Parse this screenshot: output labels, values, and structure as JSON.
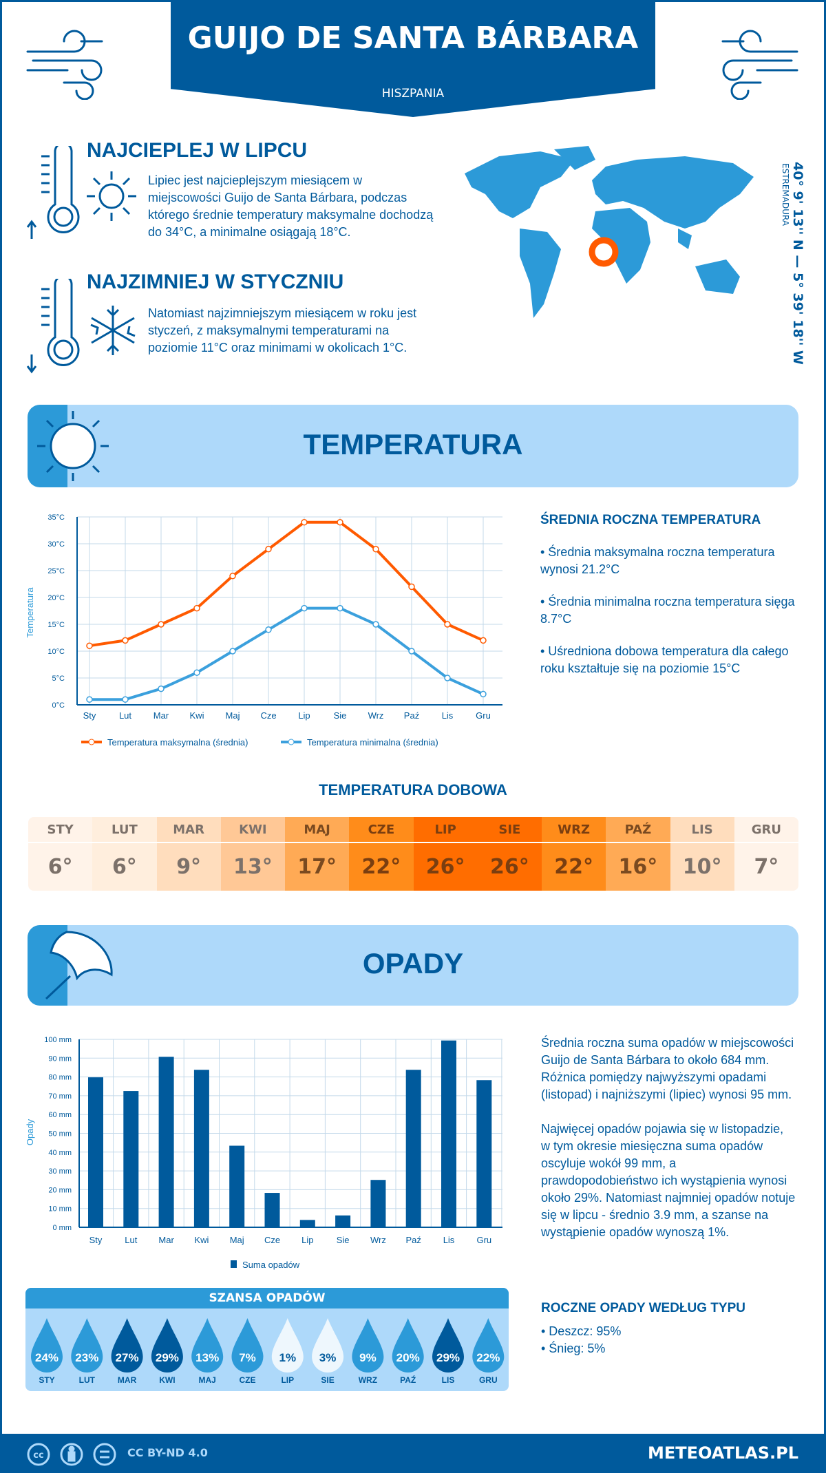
{
  "header": {
    "title": "GUIJO DE SANTA BÁRBARA",
    "country": "HISZPANIA"
  },
  "hottest": {
    "title": "NAJCIEPLEJ W LIPCU",
    "text": "Lipiec jest najcieplejszym miesiącem w miejscowości Guijo de Santa Bárbara, podczas którego średnie temperatury maksymalne dochodzą do 34°C, a minimalne osiągają 18°C."
  },
  "coldest": {
    "title": "NAJZIMNIEJ W STYCZNIU",
    "text": "Natomiast najzimniejszym miesiącem w roku jest styczeń, z maksymalnymi temperaturami na poziomie 11°C oraz minimami w okolicach 1°C."
  },
  "map": {
    "coordinates": "40° 9' 13'' N — 5° 39' 18'' W",
    "region": "ESTREMADURA",
    "marker_color": "#ff5a00"
  },
  "temp_section": {
    "title": "TEMPERATURA"
  },
  "temp_stats": {
    "title": "ŚREDNIA ROCZNA TEMPERATURA",
    "items": [
      "• Średnia maksymalna roczna temperatura wynosi 21.2°C",
      "• Średnia minimalna roczna temperatura sięga 8.7°C",
      "• Uśredniona dobowa temperatura dla całego roku kształtuje się na poziomie 15°C"
    ]
  },
  "chart_data": [
    {
      "type": "line",
      "ylabel": "Temperatura",
      "ylim": [
        0,
        35
      ],
      "yticks": [
        "0°C",
        "5°C",
        "10°C",
        "15°C",
        "20°C",
        "25°C",
        "30°C",
        "35°C"
      ],
      "categories": [
        "Sty",
        "Lut",
        "Mar",
        "Kwi",
        "Maj",
        "Cze",
        "Lip",
        "Sie",
        "Wrz",
        "Paź",
        "Lis",
        "Gru"
      ],
      "grid": true,
      "legend": "bottom",
      "series": [
        {
          "name": "Temperatura maksymalna (średnia)",
          "color": "#ff5a00",
          "values": [
            11,
            12,
            15,
            18,
            24,
            29,
            34,
            34,
            29,
            22,
            15,
            12
          ]
        },
        {
          "name": "Temperatura minimalna (średnia)",
          "color": "#3ba0dd",
          "values": [
            1,
            1,
            3,
            6,
            10,
            14,
            18,
            18,
            15,
            10,
            5,
            2
          ]
        }
      ]
    },
    {
      "type": "bar",
      "ylabel": "Opady",
      "ylim": [
        0,
        100
      ],
      "yticks": [
        "0 mm",
        "10 mm",
        "20 mm",
        "30 mm",
        "40 mm",
        "50 mm",
        "60 mm",
        "70 mm",
        "80 mm",
        "90 mm",
        "100 mm"
      ],
      "categories": [
        "Sty",
        "Lut",
        "Mar",
        "Kwi",
        "Maj",
        "Cze",
        "Lip",
        "Sie",
        "Wrz",
        "Paź",
        "Lis",
        "Gru"
      ],
      "grid": true,
      "legend": "bottom",
      "series": [
        {
          "name": "Suma opadów",
          "color": "#005a9c",
          "values": [
            79.8,
            72.5,
            90.7,
            83.8,
            43.4,
            18.3,
            3.9,
            6.3,
            25.2,
            83.8,
            99.4,
            78.3
          ]
        }
      ]
    }
  ],
  "daily": {
    "title": "TEMPERATURA DOBOWA",
    "months": [
      {
        "m": "STY",
        "v": "6°",
        "bg": "#fff3e9",
        "fg": "#7c716a"
      },
      {
        "m": "LUT",
        "v": "6°",
        "bg": "#ffeedd",
        "fg": "#7c716a"
      },
      {
        "m": "MAR",
        "v": "9°",
        "bg": "#ffddbd",
        "fg": "#7c716a"
      },
      {
        "m": "KWI",
        "v": "13°",
        "bg": "#ffc896",
        "fg": "#7c716a"
      },
      {
        "m": "MAJ",
        "v": "17°",
        "bg": "#ffaa55",
        "fg": "#7a4a20"
      },
      {
        "m": "CZE",
        "v": "22°",
        "bg": "#ff8c1a",
        "fg": "#7a3e10"
      },
      {
        "m": "LIP",
        "v": "26°",
        "bg": "#ff6d00",
        "fg": "#7a3e10"
      },
      {
        "m": "SIE",
        "v": "26°",
        "bg": "#ff6d00",
        "fg": "#7a3e10"
      },
      {
        "m": "WRZ",
        "v": "22°",
        "bg": "#ff8c1a",
        "fg": "#7a3e10"
      },
      {
        "m": "PAŹ",
        "v": "16°",
        "bg": "#ffaa55",
        "fg": "#7a4a20"
      },
      {
        "m": "LIS",
        "v": "10°",
        "bg": "#ffddbd",
        "fg": "#7c716a"
      },
      {
        "m": "GRU",
        "v": "7°",
        "bg": "#fff3e9",
        "fg": "#7c716a"
      }
    ]
  },
  "precip_section": {
    "title": "OPADY"
  },
  "precip_text": {
    "p1": "Średnia roczna suma opadów w miejscowości Guijo de Santa Bárbara to około 684 mm. Różnica pomiędzy najwyższymi opadami (listopad) i najniższymi (lipiec) wynosi 95 mm.",
    "p2": "Najwięcej opadów pojawia się w listopadzie, w tym okresie miesięczna suma opadów oscyluje wokół 99 mm, a prawdopodobieństwo ich wystąpienia wynosi około 29%. Natomiast najmniej opadów notuje się w lipcu - średnio 3.9 mm, a szanse na wystąpienie opadów wynoszą 1%."
  },
  "chance": {
    "title": "SZANSA OPADÓW",
    "items": [
      {
        "m": "STY",
        "v": "24%",
        "level": "mid"
      },
      {
        "m": "LUT",
        "v": "23%",
        "level": "mid"
      },
      {
        "m": "MAR",
        "v": "27%",
        "level": "high"
      },
      {
        "m": "KWI",
        "v": "29%",
        "level": "high"
      },
      {
        "m": "MAJ",
        "v": "13%",
        "level": "mid"
      },
      {
        "m": "CZE",
        "v": "7%",
        "level": "mid"
      },
      {
        "m": "LIP",
        "v": "1%",
        "level": "low"
      },
      {
        "m": "SIE",
        "v": "3%",
        "level": "low"
      },
      {
        "m": "WRZ",
        "v": "9%",
        "level": "mid"
      },
      {
        "m": "PAŹ",
        "v": "20%",
        "level": "mid"
      },
      {
        "m": "LIS",
        "v": "29%",
        "level": "high"
      },
      {
        "m": "GRU",
        "v": "22%",
        "level": "mid"
      }
    ],
    "colors": {
      "high": "#005a9c",
      "mid": "#2c9ad8",
      "low": "#eef7fd"
    }
  },
  "precip_type": {
    "title": "ROCZNE OPADY WEDŁUG TYPU",
    "items": [
      "• Deszcz: 95%",
      "• Śnieg: 5%"
    ]
  },
  "footer": {
    "license": "CC BY-ND 4.0",
    "site": "METEOATLAS.PL",
    "icons": [
      "cc-icon",
      "by-icon",
      "nd-icon"
    ]
  }
}
